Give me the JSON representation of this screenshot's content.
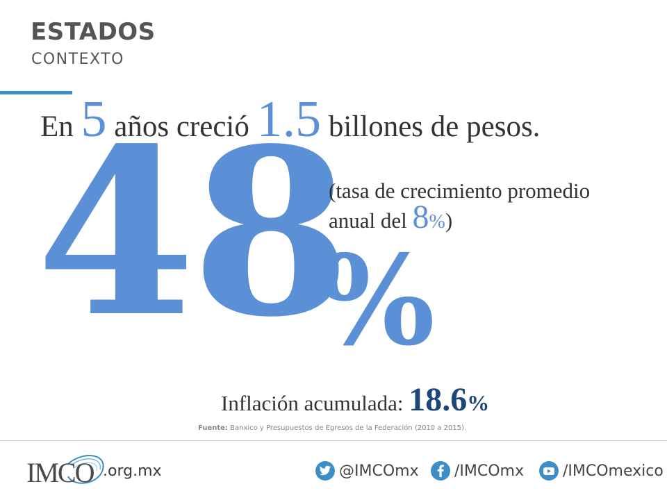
{
  "header": {
    "title": "ESTADOS",
    "subtitle": "CONTEXTO"
  },
  "headline": {
    "part1": "En",
    "years": "5",
    "part2": "años creció",
    "amount": "1.5",
    "part3": "billones de pesos."
  },
  "main_stat": {
    "value": "48",
    "unit": "%"
  },
  "rate_note": {
    "line1": "(tasa de crecimiento promedio",
    "line2_prefix": "anual del",
    "rate_value": "8",
    "rate_unit": "%",
    "close": ")"
  },
  "inflation": {
    "label": "Inflación acumulada:",
    "value": "18.6",
    "unit": "%"
  },
  "source": {
    "label": "Fuente:",
    "text": "Banxico y Presupuestos de Egresos de la Federación (2010 a 2015)."
  },
  "footer": {
    "logo_text": "IMCO",
    "domain": ".org.mx",
    "twitter": "@IMCOmx",
    "facebook": "/IMCOmx",
    "youtube": "/IMCOmexico"
  },
  "colors": {
    "accent": "#5b8fd6",
    "dark_blue": "#1e4678",
    "social": "#3d8ec4",
    "text": "#333333"
  },
  "icons": [
    "twitter-icon",
    "facebook-icon",
    "youtube-icon",
    "imco-logo"
  ]
}
